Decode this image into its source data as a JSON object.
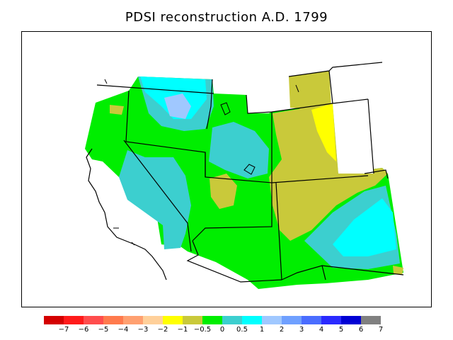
{
  "title": "PDSI reconstruction A.D. 1799",
  "legend": {
    "colors": [
      "#d40000",
      "#ff1a1a",
      "#ff4d4d",
      "#ff7a4d",
      "#ffa070",
      "#ffd09a",
      "#ffff00",
      "#c9c93a",
      "#00ee00",
      "#3ccfcf",
      "#00ffff",
      "#a0c8ff",
      "#6fa0ff",
      "#4a6dff",
      "#2a2aff",
      "#0000d4",
      "#808080"
    ],
    "labels": [
      "−7",
      "−6",
      "−5",
      "−4",
      "−3",
      "−2",
      "−1",
      "−0.5",
      "0",
      "0.5",
      "1",
      "2",
      "3",
      "4",
      "5",
      "6",
      "7"
    ]
  }
}
